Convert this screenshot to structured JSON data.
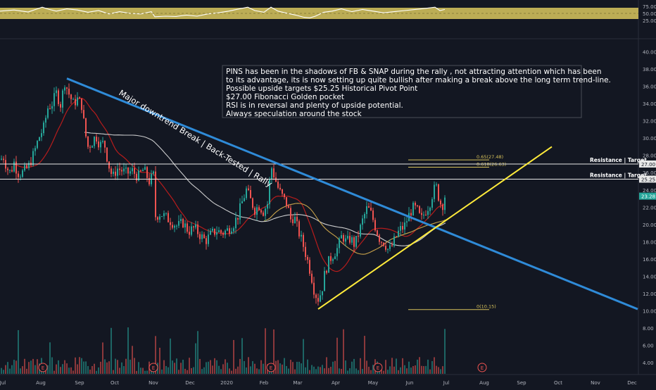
{
  "chart_data": {
    "type": "candlestick",
    "symbol_note": "PINS daily chart",
    "colors": {
      "background": "#131722",
      "up": "#26a69a",
      "down": "#ef5350",
      "downtrend": "#2f8bd8",
      "uptrend": "#ffeb3b",
      "fib": "#d6c15a",
      "sma_fast": "#b71c1c",
      "sma_slow": "#e0e0e0",
      "sma_mid": "#c8a24a",
      "rsi_band": "#d4c35c",
      "price_badge": "#26a69a"
    },
    "x_ticks": [
      "Jul",
      "Aug",
      "Sep",
      "Oct",
      "Nov",
      "Dec",
      "2020",
      "Feb",
      "Mar",
      "Apr",
      "May",
      "Jun",
      "Jul",
      "Aug",
      "Sep",
      "Oct",
      "Nov",
      "Dec"
    ],
    "price_axis": {
      "ticks": [
        "40.00",
        "38.00",
        "36.00",
        "34.00",
        "32.00",
        "30.00",
        "28.00",
        "26.00",
        "24.00",
        "22.00",
        "20.00",
        "18.00",
        "16.00",
        "14.00",
        "12.00",
        "10.00",
        "8.00",
        "6.00",
        "4.00"
      ],
      "min": 2,
      "max": 42
    },
    "rsi_axis": {
      "ticks": [
        "75.00",
        "50.00",
        "25.00"
      ],
      "band": [
        30,
        70
      ]
    },
    "price_badges": [
      {
        "value": 27.0,
        "label": "27.00"
      },
      {
        "value": 25.25,
        "label": "25.25"
      },
      {
        "value": 23.28,
        "label": "23.28"
      }
    ],
    "resistance_lines": [
      {
        "value": 27.0,
        "label": "Resistance | Target"
      },
      {
        "value": 25.25,
        "label": "Resistance | Target"
      }
    ],
    "fib_levels": [
      {
        "value": 27.48,
        "label": "0.65(27.48)"
      },
      {
        "value": 26.63,
        "label": "0.618(26.63)"
      },
      {
        "value": 10.15,
        "label": "0(10.15)"
      }
    ],
    "annotation_lines": [
      "PINS has been in the shadows of FB & SNAP during the rally , not attracting attention which has been",
      "to its advantage, its is now setting up quite bullish after making a break above the long term trend-line.",
      "Possible upside targets $25.25 Historical Pivot Point",
      "$27.00 Fibonacci Golden pocket",
      "RSI is in reversal and plenty of upside potential.",
      "Always speculation around the stock"
    ],
    "trendline_label": "Major downtrend Break | Back-Tested | Rally",
    "earnings_marker": "E",
    "earnings_marks": [
      "Aug",
      "Nov",
      "Feb",
      "May",
      "Aug"
    ],
    "close_series": [
      [
        0,
        27.5
      ],
      [
        5,
        27.8
      ],
      [
        10,
        26.5
      ],
      [
        15,
        26.0
      ],
      [
        20,
        27.2
      ],
      [
        25,
        26.0
      ],
      [
        30,
        25.9
      ],
      [
        40,
        26.6
      ],
      [
        48,
        28.2
      ],
      [
        55,
        30.0
      ],
      [
        62,
        31.2
      ],
      [
        68,
        33.5
      ],
      [
        74,
        34.0
      ],
      [
        80,
        35.2
      ],
      [
        86,
        33.9
      ],
      [
        92,
        36.5
      ],
      [
        98,
        35.1
      ],
      [
        104,
        34.0
      ],
      [
        110,
        34.5
      ],
      [
        116,
        33.8
      ],
      [
        121,
        30.6
      ],
      [
        125,
        29.0
      ],
      [
        130,
        29.4
      ],
      [
        136,
        30.3
      ],
      [
        142,
        29.2
      ],
      [
        148,
        29.5
      ],
      [
        154,
        27.0
      ],
      [
        160,
        25.4
      ],
      [
        166,
        26.5
      ],
      [
        172,
        26.3
      ],
      [
        180,
        25.9
      ],
      [
        188,
        26.2
      ],
      [
        196,
        25.5
      ],
      [
        204,
        26.4
      ],
      [
        212,
        25.0
      ],
      [
        218,
        25.7
      ],
      [
        220,
        20.9
      ],
      [
        228,
        21.3
      ],
      [
        236,
        20.8
      ],
      [
        244,
        20.3
      ],
      [
        252,
        19.8
      ],
      [
        260,
        20.2
      ],
      [
        268,
        19.2
      ],
      [
        276,
        19.6
      ],
      [
        284,
        18.8
      ],
      [
        292,
        18.1
      ],
      [
        300,
        18.9
      ],
      [
        308,
        19.3
      ],
      [
        316,
        19.0
      ],
      [
        324,
        19.4
      ],
      [
        332,
        20.1
      ],
      [
        338,
        21.0
      ],
      [
        344,
        22.6
      ],
      [
        350,
        24.0
      ],
      [
        356,
        22.8
      ],
      [
        362,
        21.7
      ],
      [
        368,
        22.2
      ],
      [
        374,
        21.5
      ],
      [
        380,
        22.4
      ],
      [
        385,
        26.8
      ],
      [
        390,
        25.5
      ],
      [
        396,
        24.0
      ],
      [
        402,
        23.1
      ],
      [
        408,
        22.3
      ],
      [
        413,
        20.6
      ],
      [
        418,
        20.9
      ],
      [
        424,
        19.2
      ],
      [
        430,
        17.8
      ],
      [
        436,
        16.1
      ],
      [
        442,
        14.2
      ],
      [
        447,
        12.1
      ],
      [
        452,
        11.4
      ],
      [
        457,
        12.3
      ],
      [
        462,
        14.6
      ],
      [
        468,
        15.9
      ],
      [
        474,
        16.6
      ],
      [
        480,
        17.3
      ],
      [
        486,
        18.8
      ],
      [
        492,
        17.9
      ],
      [
        498,
        18.4
      ],
      [
        504,
        17.6
      ],
      [
        510,
        19.1
      ],
      [
        516,
        20.7
      ],
      [
        522,
        22.0
      ],
      [
        528,
        21.1
      ],
      [
        534,
        19.5
      ],
      [
        540,
        18.2
      ],
      [
        546,
        17.9
      ],
      [
        552,
        17.0
      ],
      [
        556,
        17.3
      ],
      [
        562,
        18.5
      ],
      [
        568,
        19.4
      ],
      [
        574,
        19.7
      ],
      [
        580,
        20.9
      ],
      [
        586,
        21.9
      ],
      [
        592,
        21.8
      ],
      [
        598,
        20.5
      ],
      [
        604,
        21.5
      ],
      [
        610,
        22.3
      ],
      [
        616,
        24.0
      ],
      [
        620,
        24.3
      ],
      [
        624,
        22.9
      ],
      [
        628,
        22.0
      ],
      [
        632,
        23.3
      ]
    ],
    "rsi_series": [
      [
        0,
        58
      ],
      [
        20,
        62
      ],
      [
        40,
        55
      ],
      [
        60,
        72
      ],
      [
        70,
        64
      ],
      [
        80,
        58
      ],
      [
        95,
        66
      ],
      [
        110,
        62
      ],
      [
        125,
        54
      ],
      [
        140,
        60
      ],
      [
        155,
        48
      ],
      [
        170,
        56
      ],
      [
        185,
        50
      ],
      [
        200,
        48
      ],
      [
        215,
        56
      ],
      [
        220,
        38
      ],
      [
        235,
        40
      ],
      [
        250,
        39
      ],
      [
        265,
        44
      ],
      [
        280,
        40
      ],
      [
        295,
        48
      ],
      [
        310,
        52
      ],
      [
        325,
        58
      ],
      [
        340,
        66
      ],
      [
        352,
        72
      ],
      [
        362,
        60
      ],
      [
        375,
        54
      ],
      [
        385,
        72
      ],
      [
        395,
        58
      ],
      [
        405,
        52
      ],
      [
        420,
        44
      ],
      [
        432,
        36
      ],
      [
        440,
        34
      ],
      [
        448,
        40
      ],
      [
        460,
        54
      ],
      [
        472,
        58
      ],
      [
        485,
        66
      ],
      [
        500,
        56
      ],
      [
        515,
        64
      ],
      [
        530,
        58
      ],
      [
        545,
        52
      ],
      [
        560,
        56
      ],
      [
        575,
        60
      ],
      [
        590,
        64
      ],
      [
        605,
        68
      ],
      [
        618,
        72
      ],
      [
        625,
        60
      ],
      [
        632,
        64
      ]
    ]
  }
}
